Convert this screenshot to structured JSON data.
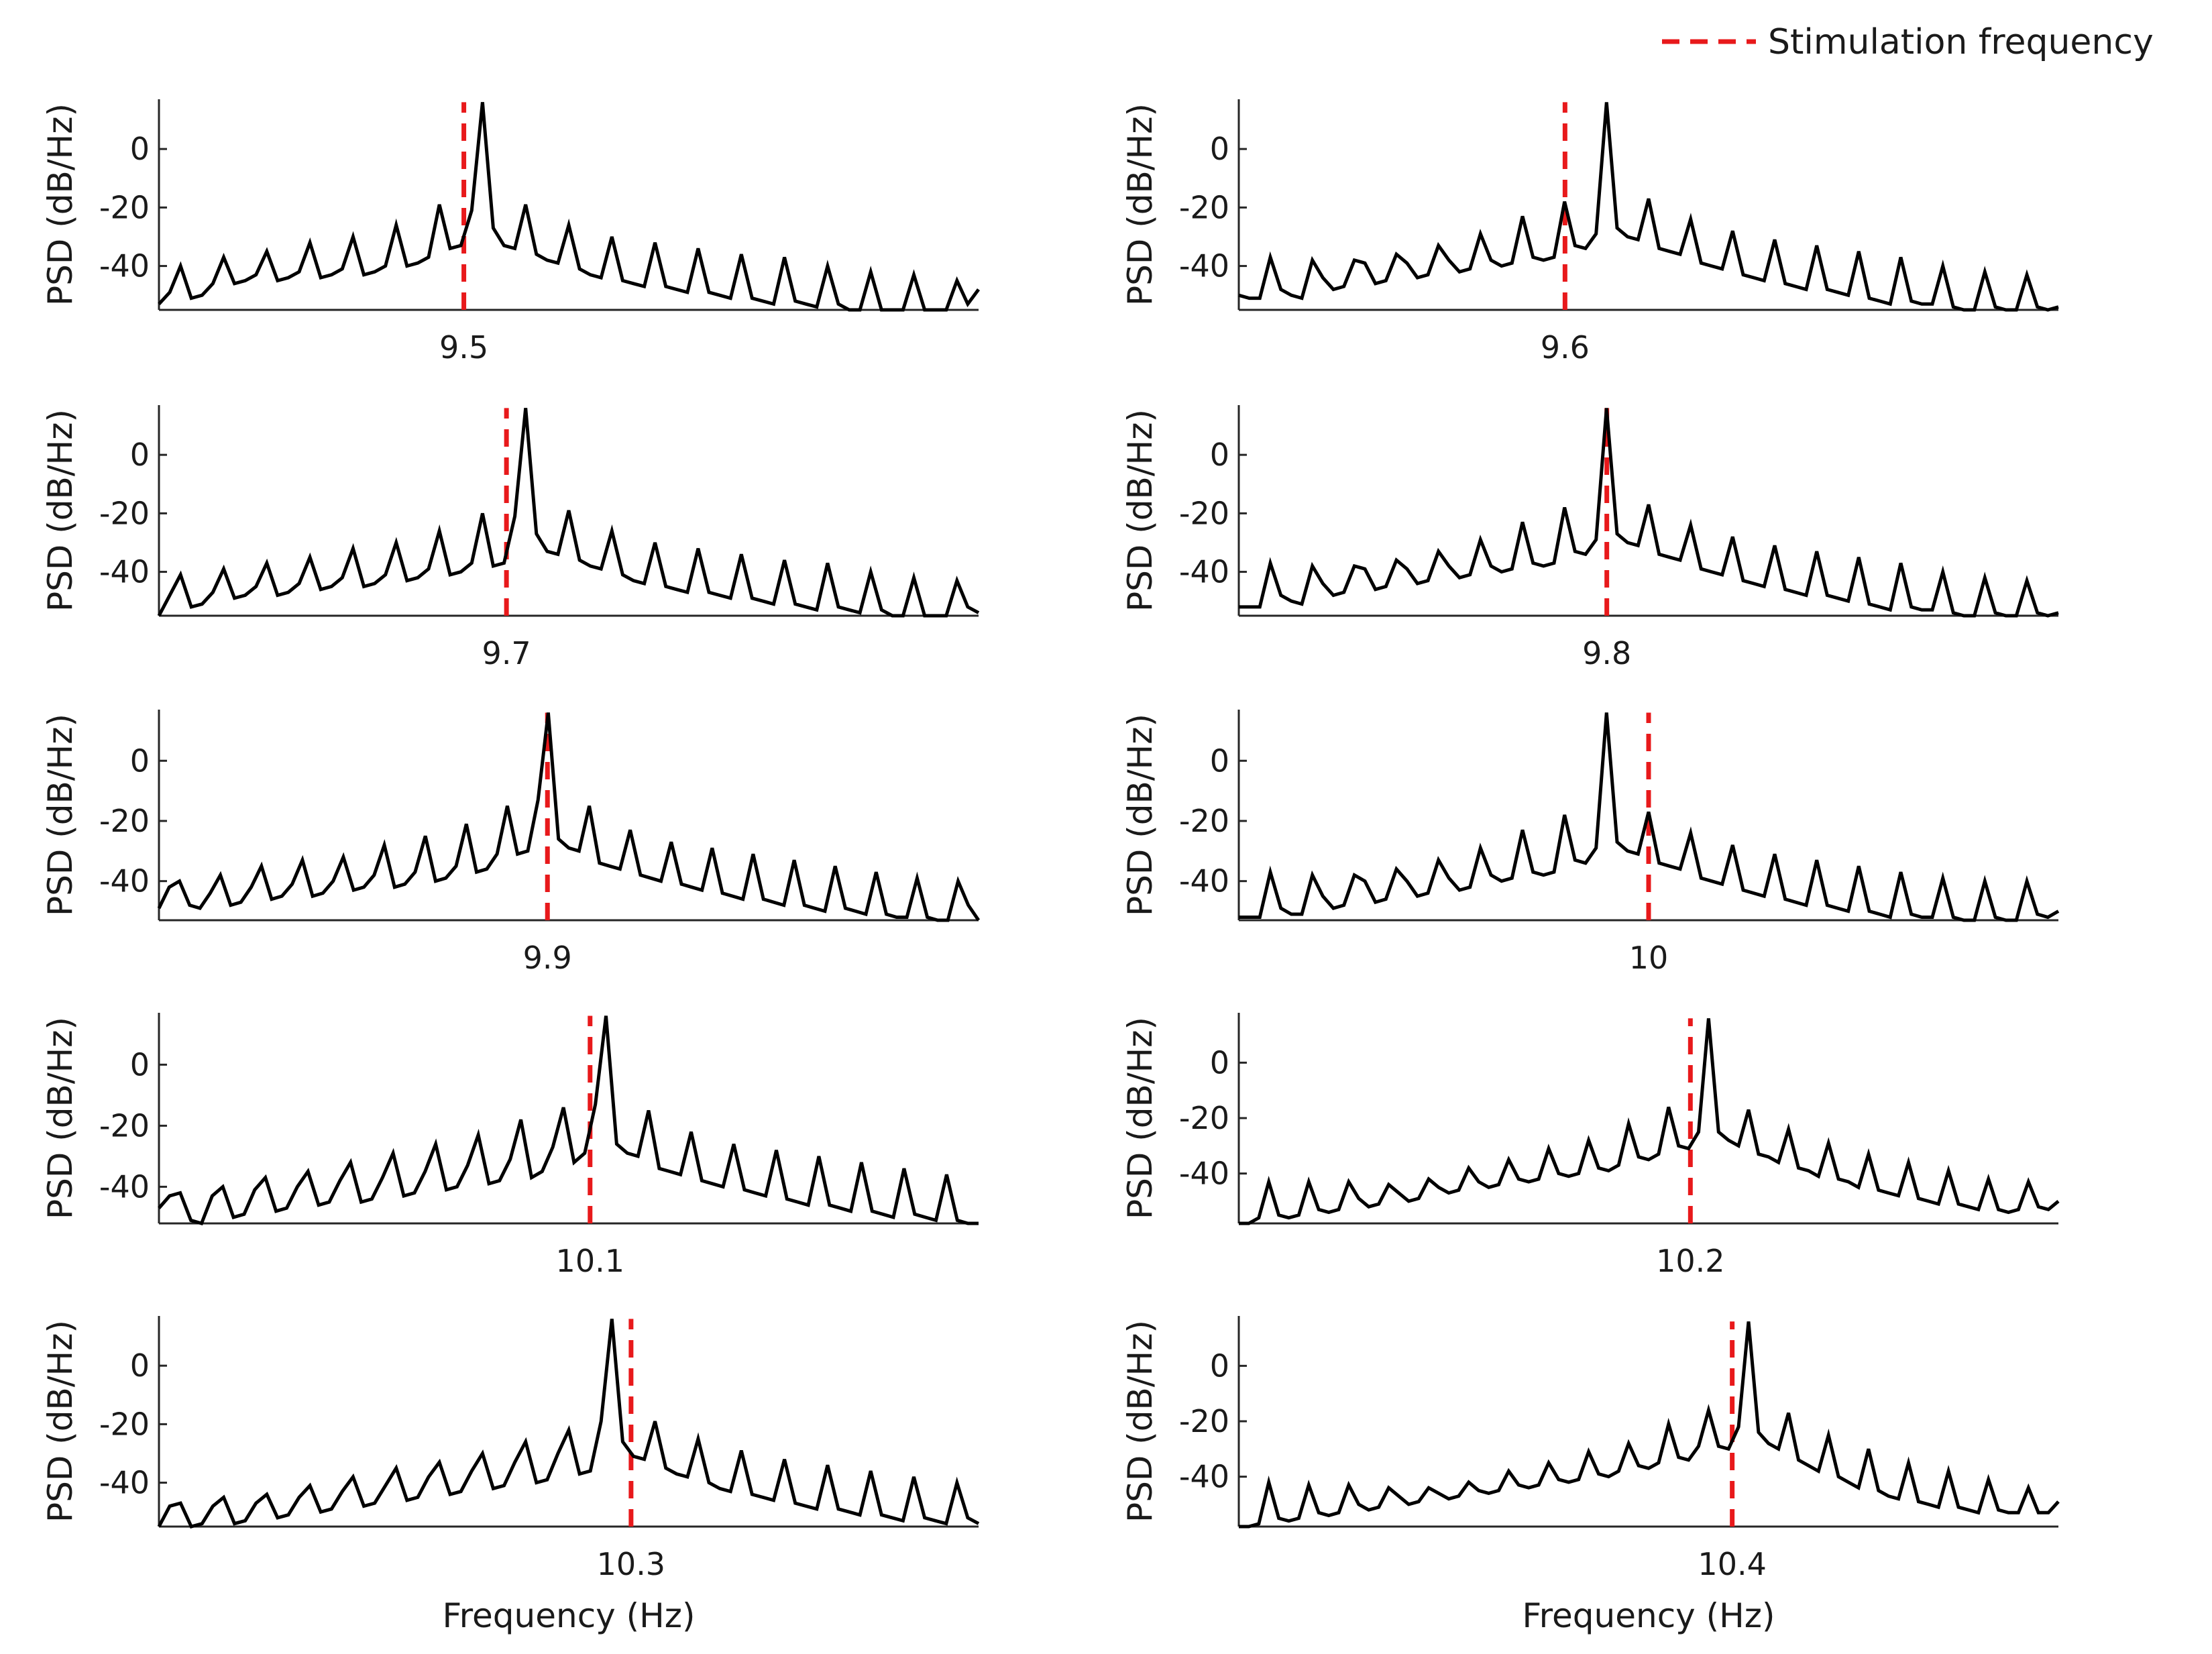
{
  "figure": {
    "legend_label": "Stimulation frequency",
    "y_axis_label": "PSD (dB/Hz)",
    "x_axis_label": "Frequency (Hz)",
    "colors": {
      "psd_line": "#000000",
      "stim_marker": "#e8191b"
    }
  },
  "chart_data": [
    {
      "type": "line",
      "stim_freq": 9.5,
      "x_tick_label": "9.5",
      "yticks": [
        0,
        -20,
        -40
      ],
      "ylim": [
        -55,
        17
      ],
      "xrange": [
        9.45,
        9.55
      ],
      "stim_position": 0.372,
      "series": [
        {
          "name": "PSD",
          "values": [
            -53,
            -49,
            -40,
            -51,
            -50,
            -46,
            -37,
            -46,
            -45,
            -43,
            -35,
            -45,
            -44,
            -42,
            -32,
            -44,
            -43,
            -41,
            -30,
            -43,
            -42,
            -40,
            -26,
            -40,
            -39,
            -37,
            -19,
            -34,
            -33,
            -21,
            16,
            -27,
            -33,
            -34,
            -19,
            -36,
            -38,
            -39,
            -26,
            -41,
            -43,
            -44,
            -30,
            -45,
            -46,
            -47,
            -32,
            -47,
            -48,
            -49,
            -34,
            -49,
            -50,
            -51,
            -36,
            -51,
            -52,
            -53,
            -37,
            -52,
            -53,
            -54,
            -40,
            -53,
            -55,
            -55,
            -42,
            -55,
            -55,
            -55,
            -43,
            -55,
            -55,
            -55,
            -45,
            -53,
            -48
          ]
        }
      ]
    },
    {
      "type": "line",
      "stim_freq": 9.6,
      "x_tick_label": "9.6",
      "yticks": [
        0,
        -20,
        -40
      ],
      "ylim": [
        -55,
        17
      ],
      "xrange": [
        9.55,
        9.65
      ],
      "stim_position": 0.398,
      "series": [
        {
          "name": "PSD",
          "values": [
            -50,
            -51,
            -51,
            -37,
            -48,
            -50,
            -51,
            -38,
            -44,
            -48,
            -47,
            -38,
            -39,
            -46,
            -45,
            -36,
            -39,
            -44,
            -43,
            -33,
            -38,
            -42,
            -41,
            -29,
            -38,
            -40,
            -39,
            -23,
            -37,
            -38,
            -37,
            -18,
            -33,
            -34,
            -29,
            16,
            -27,
            -30,
            -31,
            -17,
            -34,
            -35,
            -36,
            -24,
            -39,
            -40,
            -41,
            -28,
            -43,
            -44,
            -45,
            -31,
            -46,
            -47,
            -48,
            -33,
            -48,
            -49,
            -50,
            -35,
            -51,
            -52,
            -53,
            -37,
            -52,
            -53,
            -53,
            -40,
            -54,
            -55,
            -55,
            -42,
            -54,
            -55,
            -55,
            -43,
            -54,
            -55,
            -54
          ]
        }
      ]
    },
    {
      "type": "line",
      "stim_freq": 9.7,
      "x_tick_label": "9.7",
      "yticks": [
        0,
        -20,
        -40
      ],
      "ylim": [
        -55,
        17
      ],
      "xrange": [
        9.65,
        9.75
      ],
      "stim_position": 0.424,
      "series": [
        {
          "name": "PSD",
          "values": [
            -55,
            -48,
            -41,
            -52,
            -51,
            -47,
            -39,
            -49,
            -48,
            -45,
            -37,
            -48,
            -47,
            -44,
            -35,
            -46,
            -45,
            -42,
            -32,
            -45,
            -44,
            -41,
            -30,
            -43,
            -42,
            -39,
            -26,
            -41,
            -40,
            -37,
            -20,
            -38,
            -37,
            -21,
            16,
            -27,
            -33,
            -34,
            -19,
            -36,
            -38,
            -39,
            -26,
            -41,
            -43,
            -44,
            -30,
            -45,
            -46,
            -47,
            -32,
            -47,
            -48,
            -49,
            -34,
            -49,
            -50,
            -51,
            -36,
            -51,
            -52,
            -53,
            -37,
            -52,
            -53,
            -54,
            -40,
            -53,
            -55,
            -55,
            -42,
            -55,
            -55,
            -55,
            -43,
            -52,
            -54
          ]
        }
      ]
    },
    {
      "type": "line",
      "stim_freq": 9.8,
      "x_tick_label": "9.8",
      "yticks": [
        0,
        -20,
        -40
      ],
      "ylim": [
        -55,
        17
      ],
      "xrange": [
        9.75,
        9.85
      ],
      "stim_position": 0.449,
      "series": [
        {
          "name": "PSD",
          "values": [
            -52,
            -52,
            -52,
            -37,
            -48,
            -50,
            -51,
            -38,
            -44,
            -48,
            -47,
            -38,
            -39,
            -46,
            -45,
            -36,
            -39,
            -44,
            -43,
            -33,
            -38,
            -42,
            -41,
            -29,
            -38,
            -40,
            -39,
            -23,
            -37,
            -38,
            -37,
            -18,
            -33,
            -34,
            -29,
            16,
            -27,
            -30,
            -31,
            -17,
            -34,
            -35,
            -36,
            -24,
            -39,
            -40,
            -41,
            -28,
            -43,
            -44,
            -45,
            -31,
            -46,
            -47,
            -48,
            -33,
            -48,
            -49,
            -50,
            -35,
            -51,
            -52,
            -53,
            -37,
            -52,
            -53,
            -53,
            -40,
            -54,
            -55,
            -55,
            -42,
            -54,
            -55,
            -55,
            -43,
            -54,
            -55,
            -54
          ]
        }
      ]
    },
    {
      "type": "line",
      "stim_freq": 9.9,
      "x_tick_label": "9.9",
      "yticks": [
        0,
        -20,
        -40
      ],
      "ylim": [
        -53,
        17
      ],
      "xrange": [
        9.85,
        9.95
      ],
      "stim_position": 0.474,
      "series": [
        {
          "name": "PSD",
          "values": [
            -49,
            -42,
            -40,
            -48,
            -49,
            -44,
            -38,
            -48,
            -47,
            -42,
            -35,
            -46,
            -45,
            -41,
            -33,
            -45,
            -44,
            -40,
            -32,
            -43,
            -42,
            -38,
            -28,
            -42,
            -41,
            -37,
            -25,
            -40,
            -39,
            -35,
            -21,
            -37,
            -36,
            -31,
            -15,
            -31,
            -30,
            -13,
            16,
            -26,
            -29,
            -30,
            -15,
            -34,
            -35,
            -36,
            -23,
            -38,
            -39,
            -40,
            -27,
            -41,
            -42,
            -43,
            -29,
            -44,
            -45,
            -46,
            -31,
            -46,
            -47,
            -48,
            -33,
            -48,
            -49,
            -50,
            -35,
            -49,
            -50,
            -51,
            -37,
            -51,
            -52,
            -52,
            -39,
            -52,
            -53,
            -53,
            -40,
            -48,
            -53
          ]
        }
      ]
    },
    {
      "type": "line",
      "stim_freq": 10,
      "x_tick_label": "10",
      "yticks": [
        0,
        -20,
        -40
      ],
      "ylim": [
        -53,
        17
      ],
      "xrange": [
        9.95,
        10.05
      ],
      "stim_position": 0.5,
      "series": [
        {
          "name": "PSD",
          "values": [
            -52,
            -52,
            -52,
            -37,
            -49,
            -51,
            -51,
            -38,
            -45,
            -49,
            -48,
            -38,
            -40,
            -47,
            -46,
            -36,
            -40,
            -45,
            -44,
            -33,
            -39,
            -43,
            -42,
            -29,
            -38,
            -40,
            -39,
            -23,
            -37,
            -38,
            -37,
            -18,
            -33,
            -34,
            -29,
            16,
            -27,
            -30,
            -31,
            -17,
            -34,
            -35,
            -36,
            -24,
            -39,
            -40,
            -41,
            -28,
            -43,
            -44,
            -45,
            -31,
            -46,
            -47,
            -48,
            -33,
            -48,
            -49,
            -50,
            -35,
            -50,
            -51,
            -52,
            -37,
            -51,
            -52,
            -52,
            -39,
            -52,
            -53,
            -53,
            -40,
            -52,
            -53,
            -53,
            -40,
            -51,
            -52,
            -50
          ]
        }
      ]
    },
    {
      "type": "line",
      "stim_freq": 10.1,
      "x_tick_label": "10.1",
      "yticks": [
        0,
        -20,
        -40
      ],
      "ylim": [
        -52,
        17
      ],
      "xrange": [
        10.05,
        10.15
      ],
      "stim_position": 0.526,
      "series": [
        {
          "name": "PSD",
          "values": [
            -47,
            -43,
            -42,
            -51,
            -52,
            -43,
            -40,
            -50,
            -49,
            -41,
            -37,
            -48,
            -47,
            -40,
            -35,
            -46,
            -45,
            -38,
            -32,
            -45,
            -44,
            -37,
            -29,
            -43,
            -42,
            -35,
            -26,
            -41,
            -40,
            -33,
            -23,
            -39,
            -38,
            -31,
            -18,
            -37,
            -35,
            -27,
            -14,
            -32,
            -29,
            -13,
            16,
            -26,
            -29,
            -30,
            -15,
            -34,
            -35,
            -36,
            -22,
            -38,
            -39,
            -40,
            -26,
            -41,
            -42,
            -43,
            -28,
            -44,
            -45,
            -46,
            -30,
            -46,
            -47,
            -48,
            -32,
            -48,
            -49,
            -50,
            -34,
            -49,
            -50,
            -51,
            -36,
            -51,
            -52,
            -52
          ]
        }
      ]
    },
    {
      "type": "line",
      "stim_freq": 10.2,
      "x_tick_label": "10.2",
      "yticks": [
        0,
        -20,
        -40
      ],
      "ylim": [
        -58,
        18
      ],
      "xrange": [
        10.15,
        10.25
      ],
      "stim_position": 0.551,
      "series": [
        {
          "name": "PSD",
          "values": [
            -58,
            -58,
            -56,
            -43,
            -55,
            -56,
            -55,
            -43,
            -53,
            -54,
            -53,
            -43,
            -49,
            -52,
            -51,
            -44,
            -47,
            -50,
            -49,
            -42,
            -45,
            -47,
            -46,
            -38,
            -43,
            -45,
            -44,
            -35,
            -42,
            -43,
            -42,
            -31,
            -40,
            -41,
            -40,
            -28,
            -38,
            -39,
            -37,
            -22,
            -34,
            -35,
            -33,
            -16,
            -30,
            -31,
            -25,
            16,
            -25,
            -28,
            -30,
            -17,
            -33,
            -34,
            -36,
            -24,
            -38,
            -39,
            -41,
            -29,
            -42,
            -43,
            -45,
            -33,
            -46,
            -47,
            -48,
            -36,
            -49,
            -50,
            -51,
            -39,
            -51,
            -52,
            -53,
            -42,
            -53,
            -54,
            -53,
            -43,
            -52,
            -53,
            -50
          ]
        }
      ]
    },
    {
      "type": "line",
      "stim_freq": 10.3,
      "x_tick_label": "10.3",
      "yticks": [
        0,
        -20,
        -40
      ],
      "ylim": [
        -55,
        17
      ],
      "xrange": [
        10.25,
        10.35
      ],
      "stim_position": 0.576,
      "series": [
        {
          "name": "PSD",
          "values": [
            -55,
            -48,
            -47,
            -55,
            -54,
            -48,
            -45,
            -54,
            -53,
            -47,
            -44,
            -52,
            -51,
            -45,
            -41,
            -50,
            -49,
            -43,
            -38,
            -48,
            -47,
            -41,
            -35,
            -46,
            -45,
            -38,
            -33,
            -44,
            -43,
            -36,
            -30,
            -42,
            -41,
            -33,
            -26,
            -40,
            -39,
            -30,
            -22,
            -37,
            -36,
            -19,
            16,
            -26,
            -31,
            -32,
            -19,
            -35,
            -37,
            -38,
            -25,
            -40,
            -42,
            -43,
            -29,
            -44,
            -45,
            -46,
            -32,
            -47,
            -48,
            -49,
            -34,
            -49,
            -50,
            -51,
            -36,
            -51,
            -52,
            -53,
            -38,
            -52,
            -53,
            -54,
            -40,
            -52,
            -54
          ]
        }
      ]
    },
    {
      "type": "line",
      "stim_freq": 10.4,
      "x_tick_label": "10.4",
      "yticks": [
        0,
        -20,
        -40
      ],
      "ylim": [
        -58,
        18
      ],
      "xrange": [
        10.35,
        10.45
      ],
      "stim_position": 0.602,
      "series": [
        {
          "name": "PSD",
          "values": [
            -58,
            -58,
            -57,
            -42,
            -55,
            -56,
            -55,
            -43,
            -53,
            -54,
            -53,
            -43,
            -50,
            -52,
            -51,
            -44,
            -47,
            -50,
            -49,
            -44,
            -46,
            -48,
            -47,
            -42,
            -45,
            -46,
            -45,
            -38,
            -43,
            -44,
            -43,
            -35,
            -41,
            -42,
            -41,
            -31,
            -39,
            -40,
            -38,
            -28,
            -36,
            -37,
            -35,
            -21,
            -33,
            -34,
            -29,
            -16,
            -29,
            -30,
            -22,
            16,
            -24,
            -28,
            -30,
            -17,
            -34,
            -36,
            -38,
            -25,
            -40,
            -42,
            -44,
            -30,
            -45,
            -47,
            -48,
            -35,
            -49,
            -50,
            -51,
            -38,
            -51,
            -52,
            -53,
            -41,
            -52,
            -53,
            -53,
            -44,
            -53,
            -53,
            -49
          ]
        }
      ]
    }
  ]
}
